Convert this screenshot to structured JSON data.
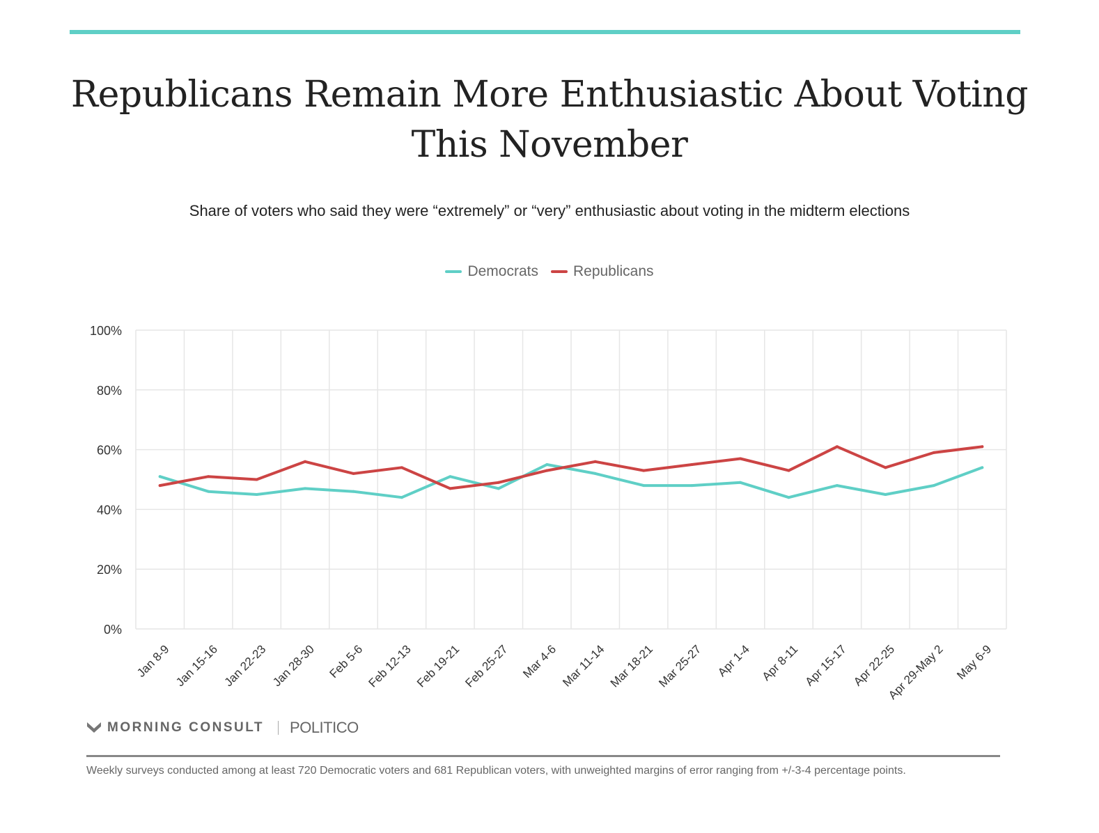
{
  "header": {
    "title": "Republicans Remain More Enthusiastic About Voting This November",
    "subtitle": "Share of voters who said they were “extremely” or “very” enthusiastic about voting in the midterm elections",
    "accent_color": "#5fcfc6"
  },
  "legend": {
    "items": [
      {
        "label": "Democrats",
        "color": "#5fcfc6"
      },
      {
        "label": "Republicans",
        "color": "#cc4444"
      }
    ]
  },
  "chart_data": {
    "type": "line",
    "title": "Republicans Remain More Enthusiastic About Voting This November",
    "subtitle": "Share of voters who said they were “extremely” or “very” enthusiastic about voting in the midterm elections",
    "xlabel": "",
    "ylabel": "",
    "ylim": [
      0,
      100
    ],
    "yticks": [
      0,
      20,
      40,
      60,
      80,
      100
    ],
    "ytick_labels": [
      "0%",
      "20%",
      "40%",
      "60%",
      "80%",
      "100%"
    ],
    "grid": true,
    "legend_position": "top-center",
    "categories": [
      "Jan 8-9",
      "Jan 15-16",
      "Jan 22-23",
      "Jan 28-30",
      "Feb 5-6",
      "Feb 12-13",
      "Feb 19-21",
      "Feb 25-27",
      "Mar 4-6",
      "Mar 11-14",
      "Mar 18-21",
      "Mar 25-27",
      "Apr 1-4",
      "Apr 8-11",
      "Apr 15-17",
      "Apr 22-25",
      "Apr 29-May 2",
      "May 6-9"
    ],
    "series": [
      {
        "name": "Democrats",
        "color": "#5fcfc6",
        "values": [
          51,
          46,
          45,
          47,
          46,
          44,
          51,
          47,
          55,
          52,
          48,
          48,
          49,
          44,
          48,
          45,
          48,
          54
        ]
      },
      {
        "name": "Republicans",
        "color": "#cc4444",
        "values": [
          48,
          51,
          50,
          56,
          52,
          54,
          47,
          49,
          53,
          56,
          53,
          55,
          57,
          53,
          61,
          54,
          59,
          61
        ]
      }
    ]
  },
  "brand": {
    "morning_consult": "MORNING CONSULT",
    "politico": "POLITICO"
  },
  "footer": {
    "note": "Weekly surveys conducted among at least 720 Democratic voters and 681 Republican voters, with unweighted margins of error ranging from +/-3-4 percentage points."
  }
}
